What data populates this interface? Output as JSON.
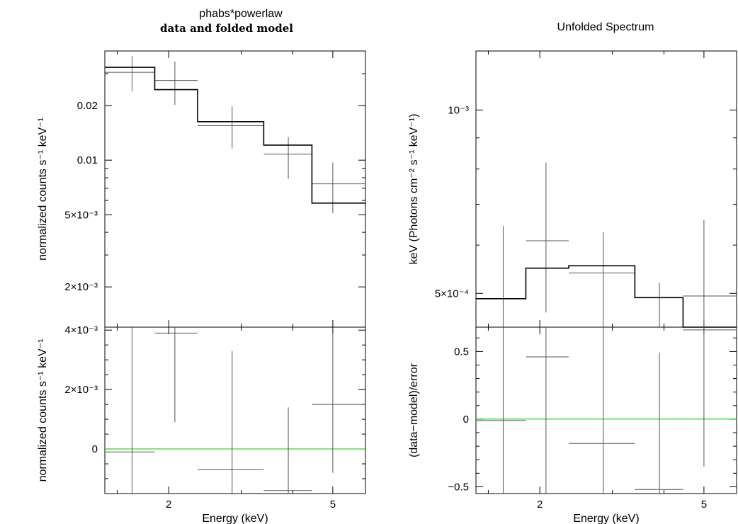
{
  "titles": {
    "left_model": "phabs*powerlaw",
    "left_sub": "data and folded model",
    "right": "Unfolded Spectrum"
  },
  "colors": {
    "frame": "#000000",
    "data": "#555555",
    "model": "#000000",
    "zero_line": "#00cc00"
  },
  "chart_data": [
    {
      "id": "folded",
      "type": "line",
      "xlabel": "Energy (keV)",
      "ylabel": "normalized counts s⁻¹ keV⁻¹",
      "xscale": "log",
      "yscale": "log",
      "xlim": [
        1.4,
        6.0
      ],
      "ylim": [
        0.0012,
        0.04
      ],
      "xticks": [
        {
          "v": 2,
          "label": "2"
        },
        {
          "v": 5,
          "label": "5"
        }
      ],
      "yticks": [
        {
          "v": 0.02,
          "label": "0.02"
        },
        {
          "v": 0.01,
          "label": "0.01"
        },
        {
          "v": 0.005,
          "label": "5×10⁻³"
        },
        {
          "v": 0.002,
          "label": "2×10⁻³"
        }
      ],
      "data": [
        {
          "x": 1.63,
          "xlo": 1.4,
          "xhi": 1.85,
          "y": 0.0305,
          "ylo": 0.024,
          "yhi": 0.0375
        },
        {
          "x": 2.07,
          "xlo": 1.85,
          "xhi": 2.35,
          "y": 0.0275,
          "ylo": 0.0202,
          "yhi": 0.035
        },
        {
          "x": 2.85,
          "xlo": 2.35,
          "xhi": 3.4,
          "y": 0.0155,
          "ylo": 0.0116,
          "yhi": 0.0198
        },
        {
          "x": 3.9,
          "xlo": 3.4,
          "xhi": 4.45,
          "y": 0.0108,
          "ylo": 0.0079,
          "yhi": 0.0134
        },
        {
          "x": 5.0,
          "xlo": 4.45,
          "xhi": 6.0,
          "y": 0.0074,
          "ylo": 0.0051,
          "yhi": 0.0097
        }
      ],
      "model": [
        {
          "xlo": 1.4,
          "xhi": 1.85,
          "y": 0.0325
        },
        {
          "xlo": 1.85,
          "xhi": 2.35,
          "y": 0.0245
        },
        {
          "xlo": 2.35,
          "xhi": 3.4,
          "y": 0.0163
        },
        {
          "xlo": 3.4,
          "xhi": 4.45,
          "y": 0.0121
        },
        {
          "xlo": 4.45,
          "xhi": 6.0,
          "y": 0.0058
        }
      ]
    },
    {
      "id": "folded_residuals",
      "type": "scatter",
      "xlabel": "Energy (keV)",
      "ylabel": "normalized counts s⁻¹ keV⁻¹",
      "xscale": "log",
      "xlim": [
        1.4,
        6.0
      ],
      "ylim": [
        -0.0015,
        0.0041
      ],
      "xticks": [
        {
          "v": 2,
          "label": "2"
        },
        {
          "v": 5,
          "label": "5"
        }
      ],
      "yticks": [
        {
          "v": 0.004,
          "label": "4×10⁻³"
        },
        {
          "v": 0.002,
          "label": "2×10⁻³"
        },
        {
          "v": 0,
          "label": "0"
        }
      ],
      "data": [
        {
          "x": 1.63,
          "xlo": 1.4,
          "xhi": 1.85,
          "y": -0.0001,
          "ylo": -0.0015,
          "yhi": 0.0041
        },
        {
          "x": 2.07,
          "xlo": 1.85,
          "xhi": 2.35,
          "y": 0.0039,
          "ylo": 0.0009,
          "yhi": 0.0041
        },
        {
          "x": 2.85,
          "xlo": 2.35,
          "xhi": 3.4,
          "y": -0.0007,
          "ylo": -0.0015,
          "yhi": 0.0033
        },
        {
          "x": 3.9,
          "xlo": 3.4,
          "xhi": 4.45,
          "y": -0.0014,
          "ylo": -0.0015,
          "yhi": 0.0014
        },
        {
          "x": 5.0,
          "xlo": 4.45,
          "xhi": 6.0,
          "y": 0.0015,
          "ylo": -0.0008,
          "yhi": 0.0039
        }
      ],
      "zero_line": 0
    },
    {
      "id": "unfolded",
      "type": "line",
      "xlabel": "Energy (keV)",
      "ylabel": "keV (Photons cm⁻² s⁻¹ keV⁻¹)",
      "xscale": "log",
      "yscale": "log",
      "xlim": [
        1.4,
        6.0
      ],
      "ylim": [
        0.00044,
        0.00125
      ],
      "xticks": [
        {
          "v": 2,
          "label": "2"
        },
        {
          "v": 5,
          "label": "5"
        }
      ],
      "yticks": [
        {
          "v": 0.001,
          "label": "10⁻³"
        },
        {
          "v": 0.0005,
          "label": "5×10⁻⁴"
        }
      ],
      "data": [
        {
          "x": 1.63,
          "xlo": 1.4,
          "xhi": 1.85,
          "y": 0.00044,
          "ylo": 0.00044,
          "yhi": 0.000645
        },
        {
          "x": 2.07,
          "xlo": 1.85,
          "xhi": 2.35,
          "y": 0.00061,
          "ylo": 0.000465,
          "yhi": 0.00082
        },
        {
          "x": 2.85,
          "xlo": 2.35,
          "xhi": 3.4,
          "y": 0.00054,
          "ylo": 0.00044,
          "yhi": 0.00063
        },
        {
          "x": 3.9,
          "xlo": 3.4,
          "xhi": 4.45,
          "y": 0.00044,
          "ylo": 0.00044,
          "yhi": 0.00052
        },
        {
          "x": 5.0,
          "xlo": 4.45,
          "xhi": 6.0,
          "y": 0.000495,
          "ylo": 0.00044,
          "yhi": 0.00066
        }
      ],
      "model": [
        {
          "xlo": 1.4,
          "xhi": 1.85,
          "y": 0.00049
        },
        {
          "xlo": 1.85,
          "xhi": 2.35,
          "y": 0.00055
        },
        {
          "xlo": 2.35,
          "xhi": 3.4,
          "y": 0.000555
        },
        {
          "xlo": 3.4,
          "xhi": 4.45,
          "y": 0.000492
        },
        {
          "xlo": 4.45,
          "xhi": 6.0,
          "y": 0.000435
        }
      ]
    },
    {
      "id": "unfolded_residuals",
      "type": "scatter",
      "xlabel": "Energy (keV)",
      "ylabel": "(data−model)/error",
      "xscale": "log",
      "xlim": [
        1.4,
        6.0
      ],
      "ylim": [
        -0.55,
        0.68
      ],
      "xticks": [
        {
          "v": 2,
          "label": "2"
        },
        {
          "v": 5,
          "label": "5"
        }
      ],
      "yticks": [
        {
          "v": 0.5,
          "label": "0.5"
        },
        {
          "v": 0,
          "label": "0"
        },
        {
          "v": -0.5,
          "label": "−0.5"
        }
      ],
      "data": [
        {
          "x": 1.63,
          "xlo": 1.4,
          "xhi": 1.85,
          "y": -0.01,
          "ylo": -0.55,
          "yhi": 0.68
        },
        {
          "x": 2.07,
          "xlo": 1.85,
          "xhi": 2.35,
          "y": 0.46,
          "ylo": -0.55,
          "yhi": 0.68
        },
        {
          "x": 2.85,
          "xlo": 2.35,
          "xhi": 3.4,
          "y": -0.18,
          "ylo": -0.55,
          "yhi": 0.68
        },
        {
          "x": 3.9,
          "xlo": 3.4,
          "xhi": 4.45,
          "y": -0.52,
          "ylo": -0.55,
          "yhi": 0.49
        },
        {
          "x": 5.0,
          "xlo": 4.45,
          "xhi": 6.0,
          "y": 0.66,
          "ylo": -0.35,
          "yhi": 0.68
        }
      ],
      "zero_line": 0
    }
  ]
}
